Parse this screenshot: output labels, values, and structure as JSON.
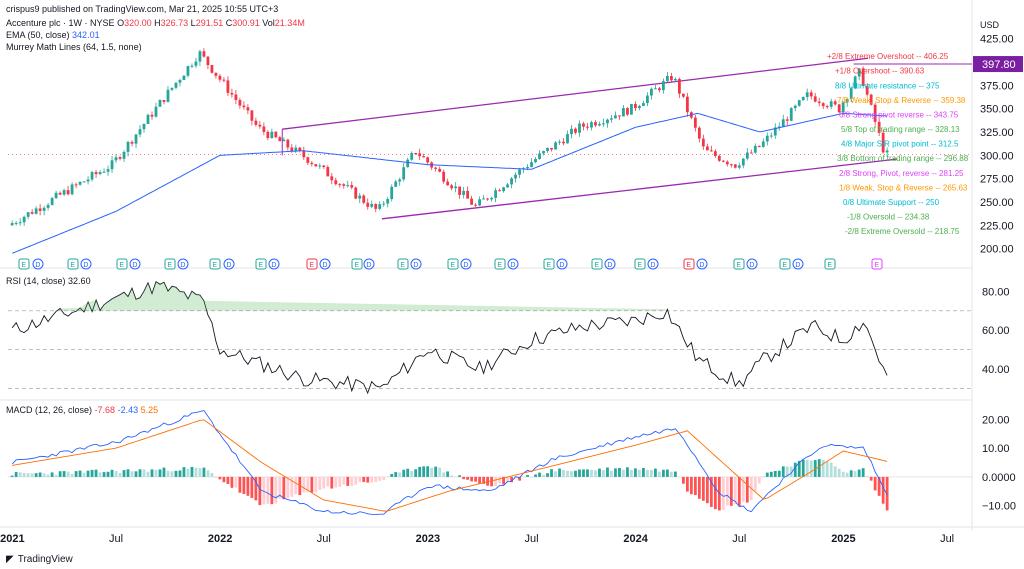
{
  "header": {
    "publisher": "crispus9 published on TradingView.com, Mar 21, 2025 10:55 UTC+3",
    "symbol": "Accenture plc · 1W · NYSE",
    "ohlc": {
      "o_label": "O",
      "o": "320.00",
      "h_label": "H",
      "h": "326.73",
      "l_label": "L",
      "l": "291.51",
      "c_label": "C",
      "c": "300.91",
      "vol_label": "Vol",
      "vol": "21.34M"
    },
    "ema_label": "EMA (50, close)",
    "ema_value": "342.01",
    "murrey_label": "Murrey Math Lines (64, 1.5, none)"
  },
  "currency": "USD",
  "price_tag": "397.80",
  "footer": {
    "brand": "TradingView"
  },
  "colors": {
    "up": "#26a69a",
    "down": "#f23645",
    "ema": "#2962ff",
    "channel": "#9c27b0",
    "rsi": "#131722",
    "macd": "#2962ff",
    "signal": "#ff6d00"
  },
  "chart_data": [
    {
      "type": "candlestick",
      "title": "Accenture plc · 1W · NYSE",
      "x_ticks": [
        "2021",
        "Jul",
        "2022",
        "Jul",
        "2023",
        "Jul",
        "2024",
        "Jul",
        "2025",
        "Jul"
      ],
      "y_ticks": [
        "425.00",
        "400.00",
        "375.00",
        "350.00",
        "325.00",
        "300.00",
        "275.00",
        "250.00",
        "225.00",
        "200.00"
      ],
      "ylim": [
        190,
        430
      ],
      "series": [
        {
          "name": "Price",
          "key_points": [
            [
              2021.0,
              225
            ],
            [
              2021.5,
              290
            ],
            [
              2021.92,
              410
            ],
            [
              2022.2,
              330
            ],
            [
              2022.45,
              295
            ],
            [
              2022.78,
              240
            ],
            [
              2022.96,
              305
            ],
            [
              2023.25,
              245
            ],
            [
              2023.5,
              290
            ],
            [
              2023.75,
              330
            ],
            [
              2024.0,
              350
            ],
            [
              2024.2,
              385
            ],
            [
              2024.35,
              305
            ],
            [
              2024.5,
              290
            ],
            [
              2024.62,
              310
            ],
            [
              2024.85,
              365
            ],
            [
              2025.0,
              350
            ],
            [
              2025.1,
              390
            ],
            [
              2025.22,
              300.91
            ]
          ]
        },
        {
          "name": "EMA (50, close)",
          "key_points": [
            [
              2021.0,
              195
            ],
            [
              2021.5,
              240
            ],
            [
              2022.0,
              300
            ],
            [
              2022.4,
              305
            ],
            [
              2023.0,
              290
            ],
            [
              2023.5,
              285
            ],
            [
              2024.0,
              330
            ],
            [
              2024.3,
              345
            ],
            [
              2024.6,
              325
            ],
            [
              2025.0,
              345
            ],
            [
              2025.22,
              342.01
            ]
          ]
        }
      ],
      "murrey_levels": [
        {
          "label": "+2/8 Extreme Overshoot",
          "value": "406.25",
          "color": "#f23645"
        },
        {
          "label": "+1/8 Overshoot",
          "value": "390.63",
          "color": "#f23645"
        },
        {
          "label": "8/8 Ultimate resistance",
          "value": "375",
          "color": "#00bcd4"
        },
        {
          "label": "7/8 Weak, Stop & Reverse",
          "value": "359.38",
          "color": "#ff9800"
        },
        {
          "label": "6/8 Strong pivot reverse",
          "value": "343.75",
          "color": "#e040fb"
        },
        {
          "label": "5/8 Top of trading range",
          "value": "328.13",
          "color": "#4caf50"
        },
        {
          "label": "4/8 Major S/R pivot point",
          "value": "312.5",
          "color": "#00bcd4"
        },
        {
          "label": "3/8 Bottom of trading range",
          "value": "296.88",
          "color": "#4caf50"
        },
        {
          "label": "2/8 Strong, Pivot, reverse",
          "value": "281.25",
          "color": "#e040fb"
        },
        {
          "label": "1/8 Weak, Stop & Reverse",
          "value": "265.63",
          "color": "#ff9800"
        },
        {
          "label": "0/8 Ultimate Support",
          "value": "250",
          "color": "#00bcd4"
        },
        {
          "label": "-1/8 Oversold",
          "value": "234.38",
          "color": "#4caf50"
        },
        {
          "label": "-2/8 Extreme Oversold",
          "value": "218.75",
          "color": "#4caf50"
        }
      ],
      "event_markers": [
        "E",
        "D",
        "E",
        "D",
        "E",
        "D",
        "E",
        "D",
        "E",
        "D",
        "E",
        "D",
        "E",
        "D",
        "E",
        "D",
        "E",
        "D",
        "E",
        "D",
        "E",
        "D",
        "E",
        "D",
        "E",
        "D",
        "E",
        "D",
        "E",
        "D",
        "E",
        "D",
        "E",
        "D",
        "E",
        "D",
        "E"
      ]
    },
    {
      "type": "line",
      "title": "RSI (14, close)",
      "value": "32.60",
      "y_ticks": [
        "80.00",
        "60.00",
        "40.00"
      ],
      "ylim": [
        25,
        90
      ],
      "bands": [
        70,
        50,
        30
      ],
      "series": [
        {
          "name": "RSI",
          "key_points": [
            [
              2021.0,
              60
            ],
            [
              2021.7,
              83
            ],
            [
              2021.92,
              75
            ],
            [
              2022.0,
              50
            ],
            [
              2022.4,
              35
            ],
            [
              2022.78,
              30
            ],
            [
              2023.0,
              50
            ],
            [
              2023.25,
              40
            ],
            [
              2023.5,
              55
            ],
            [
              2023.75,
              62
            ],
            [
              2024.0,
              65
            ],
            [
              2024.15,
              70
            ],
            [
              2024.3,
              45
            ],
            [
              2024.5,
              32
            ],
            [
              2024.62,
              45
            ],
            [
              2024.85,
              62
            ],
            [
              2025.0,
              55
            ],
            [
              2025.1,
              65
            ],
            [
              2025.22,
              32.6
            ]
          ]
        }
      ]
    },
    {
      "type": "line",
      "title": "MACD (12, 26, close)",
      "values": [
        "-7.68",
        "-2.43",
        "5.25"
      ],
      "y_ticks": [
        "20.00",
        "10.00",
        "0.0000",
        "−10.00"
      ],
      "ylim": [
        -16,
        26
      ],
      "series": [
        {
          "name": "MACD",
          "key_points": [
            [
              2021.0,
              5
            ],
            [
              2021.5,
              12
            ],
            [
              2021.92,
              23
            ],
            [
              2022.2,
              -5
            ],
            [
              2022.5,
              -12
            ],
            [
              2022.78,
              -13
            ],
            [
              2023.0,
              -3
            ],
            [
              2023.3,
              -5
            ],
            [
              2023.6,
              6
            ],
            [
              2024.0,
              14
            ],
            [
              2024.2,
              17
            ],
            [
              2024.4,
              -5
            ],
            [
              2024.55,
              -12
            ],
            [
              2024.75,
              2
            ],
            [
              2024.9,
              11
            ],
            [
              2025.1,
              10
            ],
            [
              2025.22,
              -7.68
            ]
          ]
        },
        {
          "name": "Signal",
          "key_points": [
            [
              2021.0,
              4
            ],
            [
              2021.5,
              10
            ],
            [
              2021.92,
              20
            ],
            [
              2022.2,
              5
            ],
            [
              2022.5,
              -8
            ],
            [
              2022.8,
              -12
            ],
            [
              2023.1,
              -5
            ],
            [
              2023.5,
              2
            ],
            [
              2024.0,
              11
            ],
            [
              2024.25,
              16
            ],
            [
              2024.45,
              3
            ],
            [
              2024.62,
              -8
            ],
            [
              2024.85,
              2
            ],
            [
              2025.0,
              9
            ],
            [
              2025.22,
              5.25
            ]
          ]
        }
      ]
    }
  ]
}
